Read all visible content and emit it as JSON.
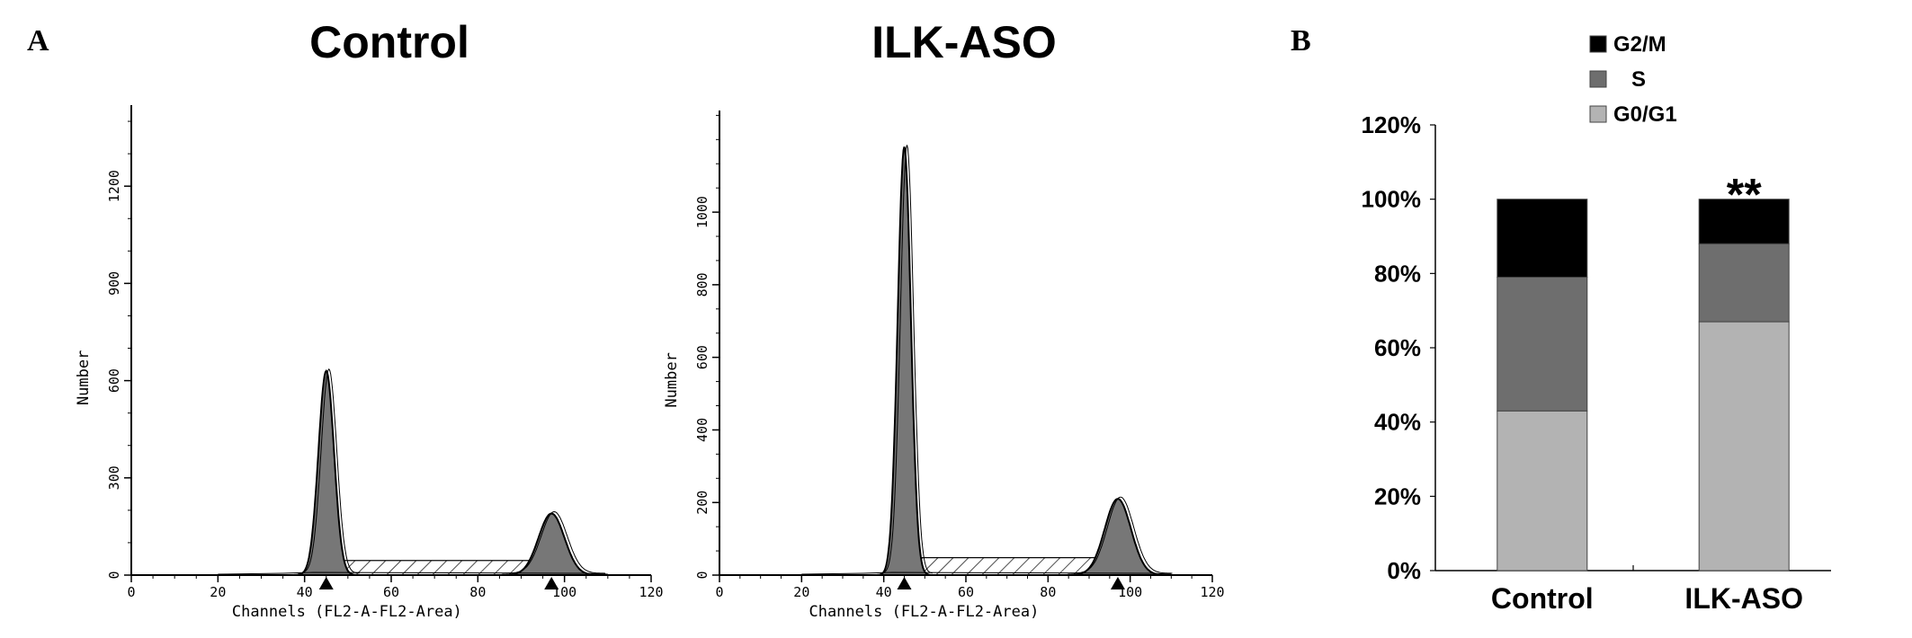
{
  "panel_a_letter": "A",
  "panel_b_letter": "B",
  "chart_data": [
    {
      "type": "area",
      "title": "Control",
      "xlabel": "Channels (FL2-A-FL2-Area)",
      "ylabel": "Number",
      "xlim": [
        0,
        120
      ],
      "ylim": [
        0,
        1450
      ],
      "x_ticks": [
        "0",
        "20",
        "40",
        "60",
        "80",
        "100",
        "120"
      ],
      "y_ticks": [
        "0",
        "300",
        "600",
        "900",
        "1200"
      ],
      "y_tick_values": [
        0,
        300,
        600,
        900,
        1200
      ],
      "markers_x": [
        45,
        97
      ],
      "peaks": [
        {
          "name": "G0/G1",
          "center": 45,
          "height": 630,
          "width": 1.8
        },
        {
          "name": "G2/M",
          "center": 97,
          "height": 190,
          "width": 3.0
        }
      ],
      "s_phase": {
        "from": 47,
        "to": 95,
        "height": 45
      },
      "colors": {
        "peak": "#777777",
        "outline": "#000000"
      }
    },
    {
      "type": "area",
      "title": "ILK-ASO",
      "xlabel": "Channels (FL2-A-FL2-Area)",
      "ylabel": "Number",
      "xlim": [
        0,
        120
      ],
      "ylim": [
        0,
        1280
      ],
      "x_ticks": [
        "0",
        "20",
        "40",
        "60",
        "80",
        "100",
        "120"
      ],
      "y_ticks": [
        "0",
        "200",
        "400",
        "600",
        "800",
        "1000"
      ],
      "y_tick_values": [
        0,
        200,
        400,
        600,
        800,
        1000
      ],
      "markers_x": [
        45,
        97
      ],
      "peaks": [
        {
          "name": "G0/G1",
          "center": 45,
          "height": 1180,
          "width": 1.6
        },
        {
          "name": "G2/M",
          "center": 97,
          "height": 210,
          "width": 3.2
        }
      ],
      "s_phase": {
        "from": 47,
        "to": 95,
        "height": 48
      },
      "colors": {
        "peak": "#777777",
        "outline": "#000000"
      }
    },
    {
      "type": "bar",
      "stacked": true,
      "categories": [
        "Control",
        "ILK-ASO"
      ],
      "series": [
        {
          "name": "G0/G1",
          "values": [
            43,
            67
          ],
          "color": "#b3b3b3"
        },
        {
          "name": "S",
          "values": [
            36,
            21
          ],
          "color": "#6e6e6e"
        },
        {
          "name": "G2/M",
          "values": [
            21,
            12
          ],
          "color": "#000000"
        }
      ],
      "legend_order": [
        "G2/M",
        "S",
        "G0/G1"
      ],
      "y_ticks": [
        "0%",
        "20%",
        "40%",
        "60%",
        "80%",
        "100%",
        "120%"
      ],
      "y_tick_values": [
        0,
        20,
        40,
        60,
        80,
        100,
        120
      ],
      "ylim": [
        0,
        120
      ],
      "annotations": [
        {
          "category": "ILK-ASO",
          "text": "**"
        }
      ],
      "legend_position": "top"
    }
  ]
}
